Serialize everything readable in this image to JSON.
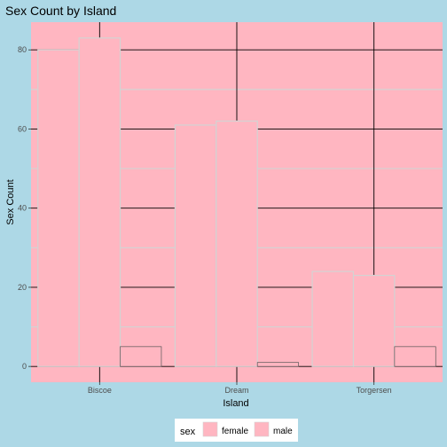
{
  "chart_data": {
    "type": "bar",
    "title": "Sex Count by Island",
    "xlabel": "Island",
    "ylabel": "Sex Count",
    "categories": [
      "Biscoe",
      "Dream",
      "Torgersen"
    ],
    "series": [
      {
        "name": "female",
        "values": [
          80,
          61,
          24
        ]
      },
      {
        "name": "male",
        "values": [
          83,
          62,
          23
        ]
      },
      {
        "name": "",
        "values": [
          5,
          1,
          5
        ]
      }
    ],
    "ylim": [
      -4,
      87
    ],
    "yticks": [
      0,
      20,
      40,
      60,
      80
    ],
    "grid": true,
    "legend": {
      "title": "sex",
      "position": "bottom",
      "entries": [
        "female",
        "male"
      ]
    },
    "colors": {
      "background": "#add8e6",
      "panel": "#ffb6c1",
      "bar_fill": "#ffb6c1",
      "bar_outline": "#d3d3d3",
      "na_outline": "#555555",
      "major_grid": "#000000",
      "minor_grid": "#d3d3d3"
    }
  }
}
